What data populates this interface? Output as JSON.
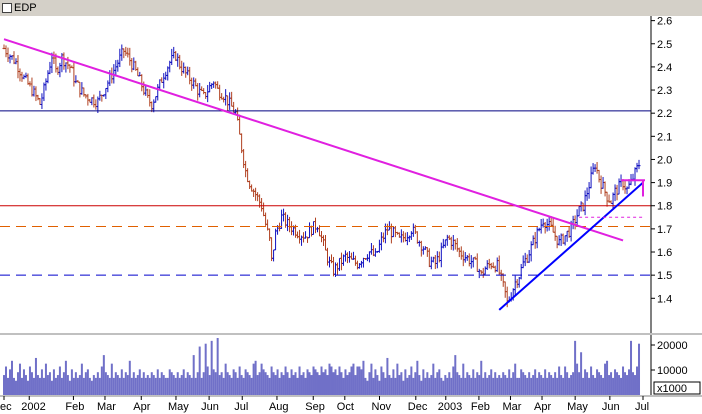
{
  "window": {
    "title": "EDP"
  },
  "chart_data": {
    "type": "ohlc",
    "title": "EDP",
    "grid": false,
    "price_axis": {
      "range": [
        1.25,
        2.62
      ],
      "tick_labels": [
        "2.6",
        "2.5",
        "2.4",
        "2.3",
        "2.2",
        "2.1",
        "2.0",
        "1.9",
        "1.8",
        "1.7",
        "1.6",
        "1.5",
        "1.4"
      ],
      "tick_values": [
        2.6,
        2.5,
        2.4,
        2.3,
        2.2,
        2.1,
        2.0,
        1.9,
        1.8,
        1.7,
        1.6,
        1.5,
        1.4
      ]
    },
    "volume_axis": {
      "range": [
        0,
        24000
      ],
      "tick_labels": [
        "20000",
        "10000"
      ],
      "tick_values": [
        20000,
        10000
      ],
      "unit_label": "x1000"
    },
    "x_axis": {
      "labels": [
        "ec",
        "2002",
        "Feb",
        "Mar",
        "Apr",
        "May",
        "Jun",
        "Jul",
        "Aug",
        "Sep",
        "Oct",
        "Nov",
        "Dec",
        "2003",
        "Feb",
        "Mar",
        "Apr",
        "May",
        "Jun",
        "Jul"
      ]
    },
    "price_path": [
      [
        0,
        2.48
      ],
      [
        6,
        2.42
      ],
      [
        10,
        2.35
      ],
      [
        14,
        2.3
      ],
      [
        18,
        2.24
      ],
      [
        20,
        2.3
      ],
      [
        24,
        2.45
      ],
      [
        26,
        2.38
      ],
      [
        29,
        2.44
      ],
      [
        33,
        2.4
      ],
      [
        36,
        2.33
      ],
      [
        40,
        2.28
      ],
      [
        44,
        2.26
      ],
      [
        47,
        2.25
      ],
      [
        50,
        2.3
      ],
      [
        53,
        2.35
      ],
      [
        57,
        2.42
      ],
      [
        60,
        2.47
      ],
      [
        63,
        2.43
      ],
      [
        66,
        2.38
      ],
      [
        69,
        2.32
      ],
      [
        72,
        2.26
      ],
      [
        74,
        2.24
      ],
      [
        77,
        2.3
      ],
      [
        80,
        2.37
      ],
      [
        83,
        2.42
      ],
      [
        86,
        2.45
      ],
      [
        88,
        2.41
      ],
      [
        91,
        2.37
      ],
      [
        94,
        2.34
      ],
      [
        97,
        2.3
      ],
      [
        100,
        2.27
      ],
      [
        102,
        2.3
      ],
      [
        105,
        2.34
      ],
      [
        107,
        2.3
      ],
      [
        110,
        2.28
      ],
      [
        113,
        2.24
      ],
      [
        116,
        2.2
      ],
      [
        119,
        2.05
      ],
      [
        121,
        1.95
      ],
      [
        123,
        1.9
      ],
      [
        126,
        1.85
      ],
      [
        129,
        1.8
      ],
      [
        131,
        1.72
      ],
      [
        133,
        1.65
      ],
      [
        134,
        1.56
      ],
      [
        136,
        1.68
      ],
      [
        139,
        1.75
      ],
      [
        142,
        1.72
      ],
      [
        145,
        1.7
      ],
      [
        148,
        1.68
      ],
      [
        151,
        1.67
      ],
      [
        154,
        1.7
      ],
      [
        157,
        1.72
      ],
      [
        159,
        1.66
      ],
      [
        161,
        1.6
      ],
      [
        163,
        1.55
      ],
      [
        165,
        1.52
      ],
      [
        168,
        1.55
      ],
      [
        171,
        1.58
      ],
      [
        174,
        1.56
      ],
      [
        177,
        1.55
      ],
      [
        180,
        1.58
      ],
      [
        183,
        1.6
      ],
      [
        186,
        1.58
      ],
      [
        189,
        1.65
      ],
      [
        192,
        1.7
      ],
      [
        195,
        1.68
      ],
      [
        198,
        1.65
      ],
      [
        201,
        1.67
      ],
      [
        204,
        1.7
      ],
      [
        207,
        1.66
      ],
      [
        210,
        1.62
      ],
      [
        213,
        1.56
      ],
      [
        216,
        1.55
      ],
      [
        219,
        1.6
      ],
      [
        222,
        1.66
      ],
      [
        225,
        1.64
      ],
      [
        228,
        1.6
      ],
      [
        231,
        1.58
      ],
      [
        234,
        1.56
      ],
      [
        237,
        1.54
      ],
      [
        239,
        1.5
      ],
      [
        241,
        1.53
      ],
      [
        244,
        1.55
      ],
      [
        247,
        1.54
      ],
      [
        249,
        1.48
      ],
      [
        251,
        1.42
      ],
      [
        252,
        1.38
      ],
      [
        254,
        1.42
      ],
      [
        256,
        1.47
      ],
      [
        258,
        1.5
      ],
      [
        260,
        1.55
      ],
      [
        262,
        1.58
      ],
      [
        264,
        1.62
      ],
      [
        266,
        1.66
      ],
      [
        268,
        1.7
      ],
      [
        270,
        1.74
      ],
      [
        272,
        1.72
      ],
      [
        274,
        1.7
      ],
      [
        276,
        1.67
      ],
      [
        278,
        1.64
      ],
      [
        280,
        1.66
      ],
      [
        282,
        1.68
      ],
      [
        284,
        1.7
      ],
      [
        286,
        1.74
      ],
      [
        288,
        1.78
      ],
      [
        290,
        1.8
      ],
      [
        292,
        1.86
      ],
      [
        294,
        1.92
      ],
      [
        296,
        1.98
      ],
      [
        298,
        1.92
      ],
      [
        300,
        1.88
      ],
      [
        302,
        1.84
      ],
      [
        304,
        1.82
      ],
      [
        306,
        1.86
      ],
      [
        308,
        1.88
      ],
      [
        310,
        1.9
      ],
      [
        312,
        1.87
      ],
      [
        314,
        1.9
      ],
      [
        316,
        1.94
      ],
      [
        318,
        1.98
      ]
    ],
    "volume_levels": [
      0.35,
      0.5,
      0.3,
      0.45,
      0.6,
      0.3,
      0.25,
      0.4,
      0.55,
      0.3,
      0.45,
      0.35,
      0.25,
      0.5,
      0.4,
      0.3,
      0.65,
      0.35,
      0.3,
      0.45,
      0.3,
      0.55,
      0.35,
      0.4,
      0.25,
      0.45,
      0.3,
      0.35,
      0.5,
      0.3,
      0.4,
      0.6,
      0.35,
      0.25,
      0.45,
      0.3,
      0.4,
      0.3,
      0.35,
      0.55,
      0.3,
      0.4,
      0.45,
      0.3,
      0.25,
      0.35,
      0.3,
      0.4,
      0.3,
      0.5,
      0.7,
      0.4,
      0.35,
      0.3,
      0.55,
      0.3,
      0.4,
      0.35,
      0.3,
      0.45,
      0.3,
      0.4,
      0.35,
      0.6,
      0.3,
      0.4,
      0.3,
      0.35,
      0.45,
      0.3,
      0.4,
      0.3,
      0.35,
      0.3,
      0.4,
      0.35,
      0.3,
      0.45,
      0.3,
      0.4,
      0.35,
      0.3,
      0.3,
      0.45,
      0.4,
      0.35,
      0.3,
      0.4,
      0.3,
      0.35,
      0.45,
      0.3,
      0.4,
      0.35,
      0.3,
      0.45,
      0.3,
      0.4,
      0.35,
      0.3,
      0.4,
      0.3,
      0.5,
      0.35,
      0.3,
      0.45,
      0.4,
      0.3,
      0.35,
      0.4,
      0.3,
      0.55,
      0.4,
      0.35,
      0.3,
      0.45,
      0.4,
      0.3,
      0.5,
      0.35,
      0.3,
      0.45,
      0.4,
      0.35,
      0.3,
      0.55,
      0.6,
      0.35,
      0.4,
      0.3,
      0.45,
      0.4,
      0.35,
      0.3,
      0.5,
      0.4,
      0.35,
      0.45,
      0.3,
      0.4,
      0.35,
      0.5,
      0.4,
      0.3,
      0.45,
      0.35,
      0.4,
      0.3,
      0.5,
      0.35,
      0.4,
      0.3,
      0.45,
      0.4,
      0.35,
      0.5,
      0.45,
      0.4,
      0.35,
      0.5,
      0.4,
      0.45,
      0.35,
      0.55,
      0.5,
      0.4,
      0.45,
      0.35,
      0.5,
      0.4,
      0.3,
      0.45,
      0.35,
      0.4,
      0.5,
      0.55
    ],
    "volume_peaks": [
      [
        95,
        0.7
      ],
      [
        98,
        0.85
      ],
      [
        101,
        0.9
      ],
      [
        104,
        0.95
      ],
      [
        107,
        1.0
      ],
      [
        129,
        0.55
      ],
      [
        178,
        0.5
      ],
      [
        256,
        0.55
      ],
      [
        281,
        0.5
      ],
      [
        286,
        0.95
      ],
      [
        289,
        0.75
      ],
      [
        314,
        0.95
      ],
      [
        318,
        0.9
      ]
    ],
    "annotations": {
      "long_downtrend": {
        "color": "#e020e0",
        "from": [
          0,
          2.52
        ],
        "to": [
          310,
          1.65
        ]
      },
      "short_uptrend": {
        "color": "#0000ff",
        "from": [
          248,
          1.35
        ],
        "to": [
          320,
          1.9
        ]
      },
      "horizontal_lines": [
        {
          "value": 2.21,
          "color": "#000080",
          "style": "solid"
        },
        {
          "value": 1.8,
          "color": "#cc0000",
          "style": "solid"
        },
        {
          "value": 1.71,
          "color": "#e06000",
          "style": "dashed"
        },
        {
          "value": 1.5,
          "color": "#0000cc",
          "style": "dashed"
        }
      ],
      "recent_box": {
        "color": "#e020e0",
        "from": [
          309,
          1.91
        ],
        "to": [
          321,
          1.91
        ]
      },
      "recent_box_drop": {
        "color": "#e020e0",
        "at": 320,
        "from": 1.91,
        "to": 1.84
      },
      "small_level": {
        "color": "#e020e0",
        "value": 1.75,
        "from": 288,
        "to": 320
      }
    }
  }
}
